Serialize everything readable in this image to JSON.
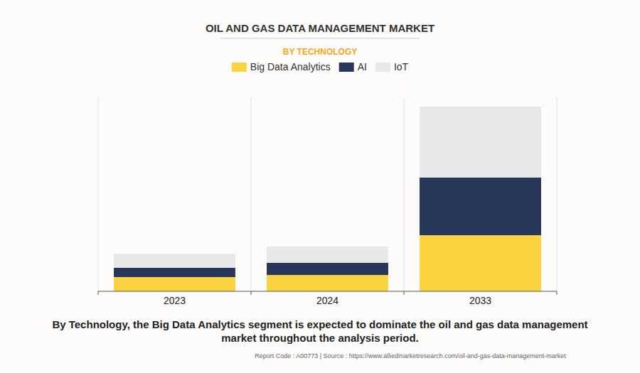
{
  "chart_data": {
    "type": "bar",
    "stacked": true,
    "title": "OIL AND GAS DATA MANAGEMENT MARKET",
    "subtitle": "BY TECHNOLOGY",
    "caption": "By Technology, the Big Data Analytics segment is expected to dominate the oil and gas data management market throughout the analysis period.",
    "source": "Report Code : A00773  |  Source : https://www.alliedmarketresearch.com/oil-and-gas-data-management-market",
    "categories": [
      "2023",
      "2024",
      "2033"
    ],
    "series": [
      {
        "name": "Big Data Analytics",
        "color": "#fbd341",
        "values": [
          20,
          23,
          79
        ]
      },
      {
        "name": "AI",
        "color": "#283659",
        "values": [
          13,
          17,
          81
        ]
      },
      {
        "name": "IoT",
        "color": "#e8e8e8",
        "values": [
          20,
          23,
          100
        ]
      }
    ],
    "ylim": [
      0,
      273
    ],
    "tick_labels": "x",
    "grid": true,
    "legend": "top"
  }
}
